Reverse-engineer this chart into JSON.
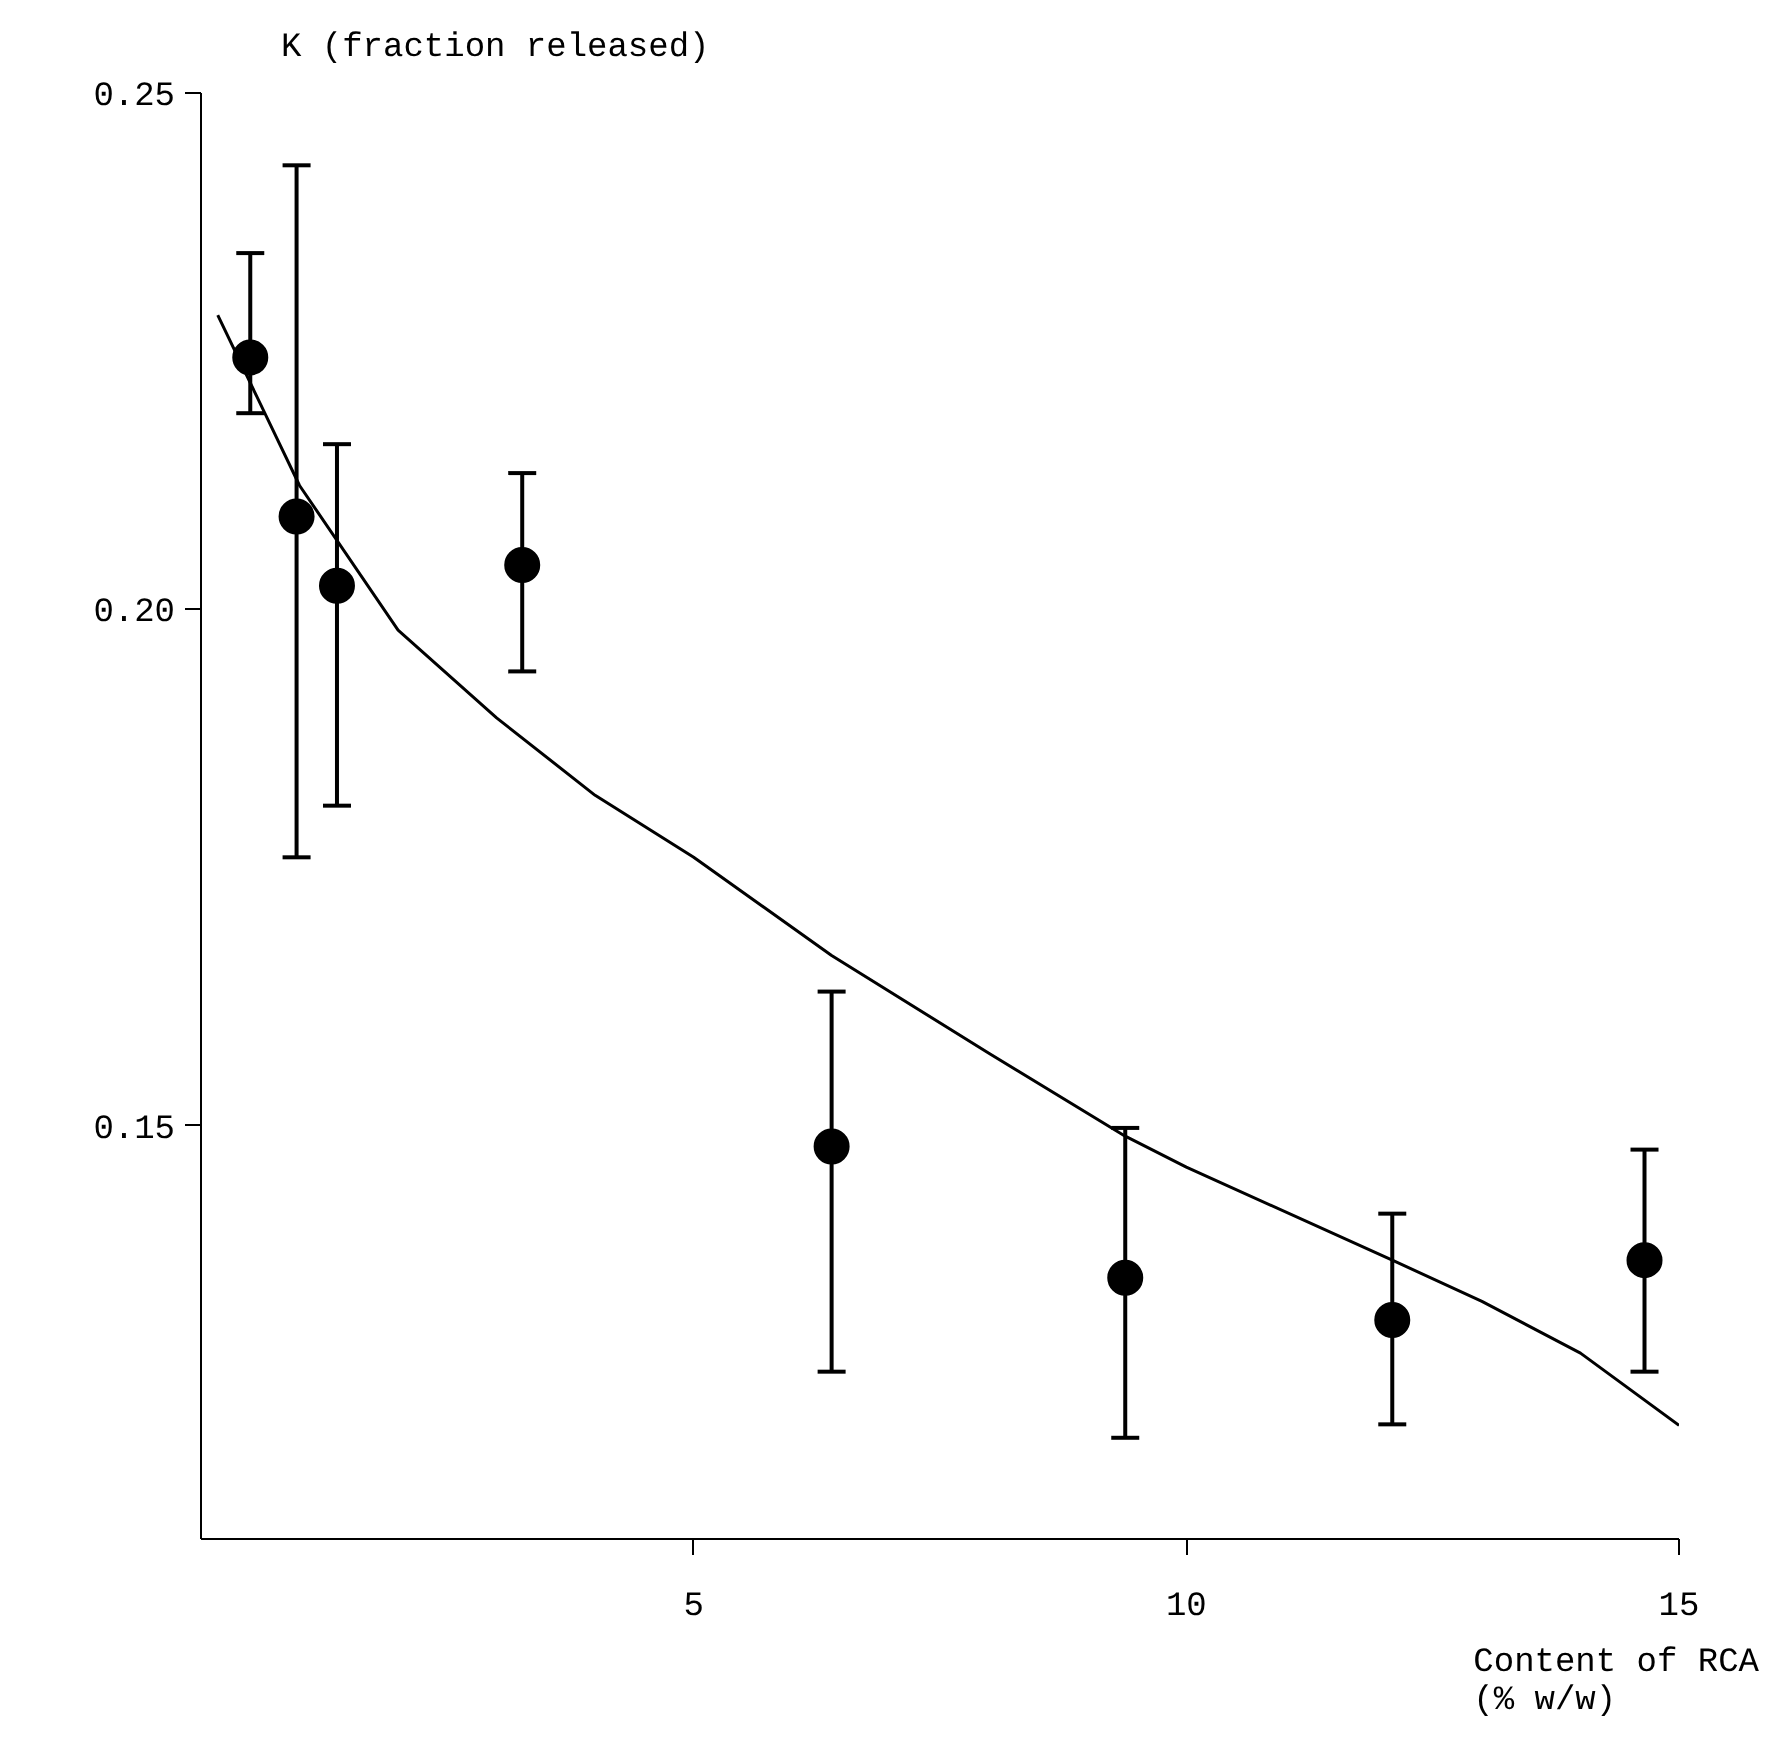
{
  "chart_data": {
    "type": "scatter",
    "ylabel": "K (fraction released)",
    "xlabel": "Content of RCA\n(% w/w)",
    "xlim": [
      0,
      15
    ],
    "ylim": [
      0.11,
      0.25
    ],
    "xticks": [
      5,
      10,
      15
    ],
    "yticks": [
      {
        "value": 0.15,
        "label": "0.15"
      },
      {
        "value": 0.2,
        "label": "0.20"
      },
      {
        "value": 0.25,
        "label": "0.25"
      }
    ],
    "grid": false,
    "x": [
      0.5,
      0.97,
      1.38,
      3.26,
      6.4,
      9.38,
      12.09,
      14.65
    ],
    "series": [
      {
        "marker": "circle",
        "color": "#000000",
        "values": [
          0.2244,
          0.209,
          0.2023,
          0.2043,
          0.148,
          0.1353,
          0.1312,
          0.137
        ],
        "errors": [
          [
            0.219,
            0.2345
          ],
          [
            0.176,
            0.243
          ],
          [
            0.181,
            0.216
          ],
          [
            0.194,
            0.2132
          ],
          [
            0.1262,
            0.163
          ],
          [
            0.1198,
            0.1498
          ],
          [
            0.1211,
            0.1415
          ],
          [
            0.1262,
            0.1477
          ]
        ]
      },
      {
        "type": "line",
        "color": "#000000",
        "line_style": "solid",
        "x": [
          0.17,
          1,
          2,
          3,
          4,
          5,
          6.4,
          8,
          9.38,
          10,
          12.09,
          13,
          14,
          15
        ],
        "values": [
          0.2285,
          0.212,
          0.198,
          0.1895,
          0.182,
          0.176,
          0.1665,
          0.157,
          0.149,
          0.146,
          0.137,
          0.133,
          0.128,
          0.121
        ]
      }
    ]
  }
}
